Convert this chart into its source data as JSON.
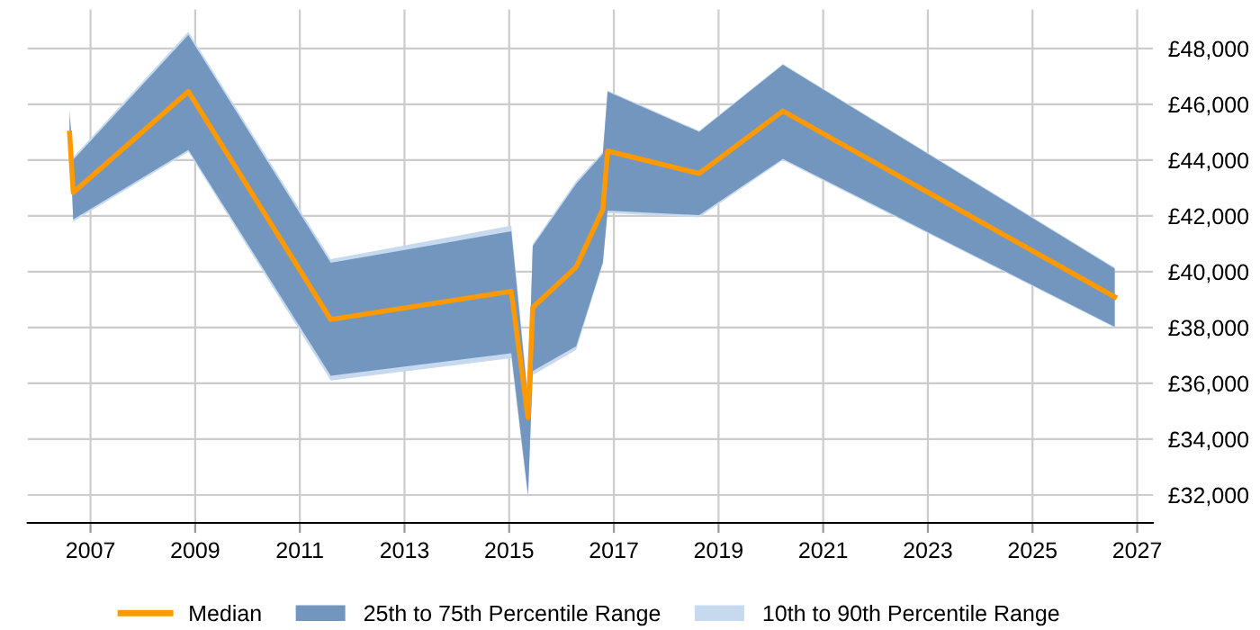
{
  "chart_data": {
    "type": "line",
    "x": [
      2006.6,
      2006.67,
      2008.87,
      2011.59,
      2015.04,
      2015.36,
      2015.45,
      2016.28,
      2016.79,
      2016.88,
      2018.63,
      2020.23,
      2026.57
    ],
    "series": [
      {
        "name": "10th to 90th Percentile Range",
        "color": "#c6d9ee",
        "values": [
          null,
          null,
          null,
          null,
          null,
          null,
          null,
          null,
          null,
          null,
          null,
          null,
          null
        ],
        "lower": [
          44900,
          41800,
          44300,
          36100,
          36900,
          31900,
          36300,
          37200,
          40300,
          42100,
          41950,
          44000,
          38000
        ],
        "upper": [
          45800,
          44100,
          48600,
          40450,
          41650,
          35600,
          41000,
          43250,
          44300,
          46500,
          45050,
          47450,
          40150
        ]
      },
      {
        "name": "25th to 75th Percentile Range",
        "color": "#7396be",
        "values": [
          null,
          null,
          null,
          null,
          null,
          null,
          null,
          null,
          null,
          null,
          null,
          null,
          null
        ],
        "lower": [
          44900,
          41880,
          44370,
          36270,
          37080,
          32000,
          36440,
          37330,
          40340,
          42190,
          42030,
          44050,
          38030
        ],
        "upper": [
          45700,
          44010,
          48490,
          40320,
          41450,
          35400,
          40920,
          43150,
          44220,
          46460,
          45010,
          47420,
          40110
        ]
      },
      {
        "name": "Median",
        "type": "line",
        "color": "#ff9900",
        "values": [
          44970,
          42840,
          46460,
          38290,
          39300,
          34770,
          38720,
          40170,
          42240,
          44330,
          43520,
          45760,
          39100
        ]
      }
    ],
    "xlim": [
      2005.8,
      2027.3
    ],
    "xticks": [
      2007,
      2009,
      2011,
      2013,
      2015,
      2017,
      2019,
      2021,
      2023,
      2025,
      2027
    ],
    "ylim": [
      31000,
      49400
    ],
    "yticks": [
      {
        "value": 32000,
        "label": "£32,000"
      },
      {
        "value": 34000,
        "label": "£34,000"
      },
      {
        "value": 36000,
        "label": "£36,000"
      },
      {
        "value": 38000,
        "label": "£38,000"
      },
      {
        "value": 40000,
        "label": "£40,000"
      },
      {
        "value": 42000,
        "label": "£42,000"
      },
      {
        "value": 44000,
        "label": "£44,000"
      },
      {
        "value": 46000,
        "label": "£46,000"
      },
      {
        "value": 48000,
        "label": "£48,000"
      }
    ],
    "grid": true,
    "legend": "bottom",
    "marker": "none",
    "line_style": "solid"
  }
}
